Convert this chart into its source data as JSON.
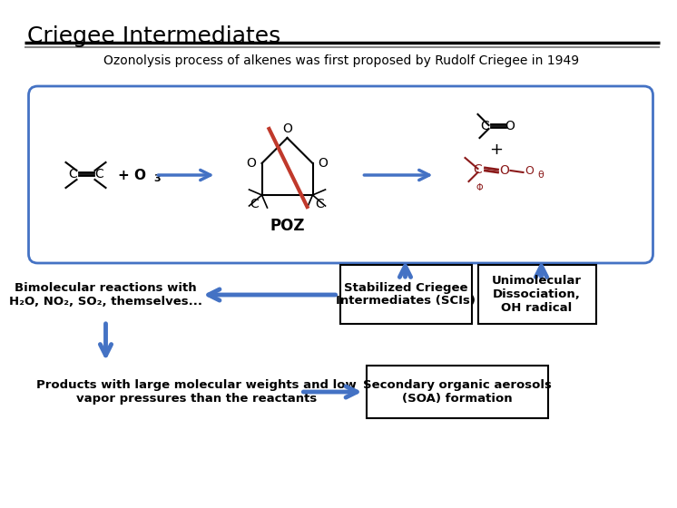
{
  "title": "Criegee Intermediates",
  "subtitle": "Ozonolysis process of alkenes was first proposed by Rudolf Criegee in 1949",
  "title_fontsize": 18,
  "subtitle_fontsize": 10,
  "arrow_color": "#4472C4",
  "box_edge_color": "#4472C4",
  "sci_box_text": "Stabilized Criegee\nIntermediates (SCIs)",
  "uni_box_text": "Unimolecular\nDissociation,\nOH radical",
  "soa_box_text": "Secondary organic aerosols\n(SOA) formation",
  "bimol_text": "Bimolecular reactions with\nH₂O, NO₂, SO₂, themselves...",
  "products_text": "Products with large molecular weights and low\nvapor pressures than the reactants",
  "poz_label": "POZ",
  "red_color": "#C0392B",
  "ci_color": "#8B1A1A",
  "background": "#ffffff"
}
